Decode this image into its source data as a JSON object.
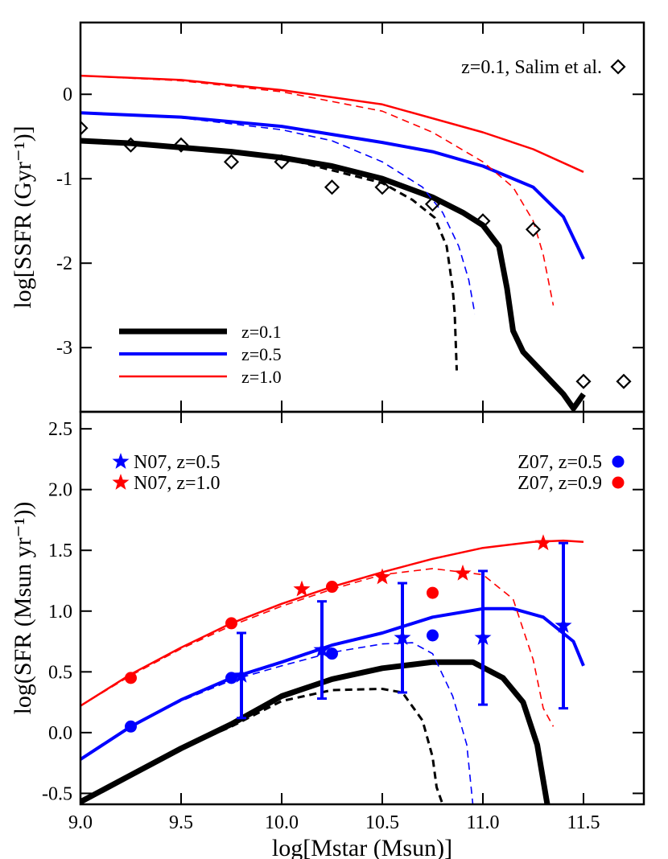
{
  "chart_data": [
    {
      "type": "line",
      "ylabel": "log[SSFR (Gyr⁻¹)]",
      "xlim": [
        9.0,
        11.8
      ],
      "ylim": [
        -3.76,
        0.85
      ],
      "xticks": [
        9,
        9.5,
        10,
        10.5,
        11,
        11.5
      ],
      "yticks": [
        0,
        -1,
        -2,
        -3
      ],
      "legend": "lower left",
      "series": [
        {
          "name": "z=0.1",
          "color": "#000000",
          "linewidth": 7,
          "linestyle": "solid",
          "x": [
            9.0,
            9.25,
            9.5,
            9.75,
            10.0,
            10.25,
            10.5,
            10.75,
            10.9,
            11.0,
            11.08,
            11.12,
            11.15,
            11.2,
            11.3,
            11.4,
            11.45,
            11.5
          ],
          "values": [
            -0.55,
            -0.58,
            -0.63,
            -0.68,
            -0.75,
            -0.85,
            -1.0,
            -1.22,
            -1.4,
            -1.55,
            -1.8,
            -2.3,
            -2.8,
            -3.05,
            -3.3,
            -3.55,
            -3.72,
            -3.55
          ]
        },
        {
          "color": "#000000",
          "linewidth": 3,
          "linestyle": "dashed",
          "x": [
            9.0,
            9.5,
            10.0,
            10.25,
            10.5,
            10.65,
            10.76,
            10.82,
            10.85,
            10.86,
            10.87
          ],
          "values": [
            -0.55,
            -0.63,
            -0.75,
            -0.9,
            -1.05,
            -1.25,
            -1.46,
            -1.8,
            -2.3,
            -2.6,
            -3.27
          ]
        },
        {
          "name": "z=0.5",
          "color": "#0000ff",
          "linewidth": 4,
          "linestyle": "solid",
          "x": [
            9.0,
            9.5,
            10.0,
            10.5,
            10.75,
            11.0,
            11.25,
            11.4,
            11.5
          ],
          "values": [
            -0.22,
            -0.27,
            -0.38,
            -0.57,
            -0.68,
            -0.85,
            -1.1,
            -1.45,
            -1.95
          ]
        },
        {
          "color": "#0000ff",
          "linewidth": 1.6,
          "linestyle": "dashed",
          "x": [
            9.0,
            9.5,
            10.0,
            10.25,
            10.5,
            10.7,
            10.8,
            10.88,
            10.93,
            10.96
          ],
          "values": [
            -0.22,
            -0.28,
            -0.42,
            -0.55,
            -0.8,
            -1.1,
            -1.4,
            -1.8,
            -2.2,
            -2.6
          ]
        },
        {
          "name": "z=1.0",
          "color": "#ff0000",
          "linewidth": 2.5,
          "linestyle": "solid",
          "x": [
            9.0,
            9.5,
            10.0,
            10.5,
            11.0,
            11.25,
            11.5
          ],
          "values": [
            0.22,
            0.17,
            0.05,
            -0.12,
            -0.45,
            -0.65,
            -0.92
          ]
        },
        {
          "color": "#ff0000",
          "linewidth": 1.6,
          "linestyle": "dashed",
          "x": [
            9.0,
            9.5,
            10.0,
            10.5,
            10.75,
            11.0,
            11.15,
            11.25,
            11.3,
            11.35
          ],
          "values": [
            0.22,
            0.16,
            0.03,
            -0.2,
            -0.45,
            -0.8,
            -1.1,
            -1.5,
            -1.9,
            -2.5
          ]
        },
        {
          "name": "z=0.1, Salim et al.",
          "color": "#000000",
          "marker": "diamond",
          "x": [
            9.0,
            9.25,
            9.5,
            9.75,
            10.0,
            10.25,
            10.5,
            10.75,
            11.0,
            11.25,
            11.5,
            11.7
          ],
          "values": [
            -0.4,
            -0.6,
            -0.6,
            -0.8,
            -0.8,
            -1.1,
            -1.1,
            -1.3,
            -1.5,
            -1.6,
            -3.4,
            -3.4
          ]
        }
      ]
    },
    {
      "type": "line",
      "xlabel": "log[Mstar (Msun)]",
      "ylabel": "log(SFR (Msun yr⁻¹))",
      "xlim": [
        9.0,
        11.8
      ],
      "ylim": [
        -0.59,
        2.64
      ],
      "xticks": [
        {
          "value": 9,
          "label": "9.0"
        },
        9.5,
        {
          "value": 10,
          "label": "10.0"
        },
        10.5,
        {
          "value": 11,
          "label": "11.0"
        },
        11.5
      ],
      "yticks": [
        2.5,
        {
          "value": 2,
          "label": "2.0"
        },
        1.5,
        {
          "value": 1,
          "label": "1.0"
        },
        0.5,
        {
          "value": 0,
          "label": "0.0"
        },
        -0.5
      ],
      "series": [
        {
          "color": "#000000",
          "linewidth": 7,
          "linestyle": "solid",
          "x": [
            9.0,
            9.25,
            9.5,
            9.75,
            10.0,
            10.25,
            10.5,
            10.75,
            10.95,
            11.1,
            11.2,
            11.27,
            11.32
          ],
          "values": [
            -0.57,
            -0.35,
            -0.13,
            0.07,
            0.3,
            0.44,
            0.53,
            0.58,
            0.58,
            0.45,
            0.25,
            -0.1,
            -0.59
          ]
        },
        {
          "color": "#000000",
          "linewidth": 3,
          "linestyle": "dashed",
          "x": [
            9.0,
            9.25,
            9.5,
            9.75,
            10.0,
            10.25,
            10.5,
            10.6,
            10.7,
            10.75,
            10.77,
            10.8
          ],
          "values": [
            -0.57,
            -0.35,
            -0.13,
            0.05,
            0.26,
            0.35,
            0.36,
            0.33,
            0.1,
            -0.2,
            -0.45,
            -0.59
          ]
        },
        {
          "color": "#0000ff",
          "linewidth": 4,
          "linestyle": "solid",
          "x": [
            9.0,
            9.25,
            9.5,
            9.75,
            10.0,
            10.25,
            10.5,
            10.75,
            11.0,
            11.15,
            11.3,
            11.45,
            11.5
          ],
          "values": [
            -0.22,
            0.05,
            0.27,
            0.45,
            0.58,
            0.72,
            0.82,
            0.95,
            1.02,
            1.02,
            0.95,
            0.75,
            0.55
          ]
        },
        {
          "color": "#0000ff",
          "linewidth": 1.6,
          "linestyle": "dashed",
          "x": [
            9.0,
            9.25,
            9.5,
            9.75,
            10.0,
            10.25,
            10.5,
            10.65,
            10.75,
            10.85,
            10.92,
            10.95
          ],
          "values": [
            -0.22,
            0.05,
            0.26,
            0.43,
            0.55,
            0.66,
            0.73,
            0.74,
            0.65,
            0.3,
            -0.1,
            -0.59
          ]
        },
        {
          "color": "#ff0000",
          "linewidth": 2.5,
          "linestyle": "solid",
          "x": [
            9.0,
            9.25,
            9.5,
            9.75,
            10.0,
            10.25,
            10.5,
            10.75,
            11.0,
            11.25,
            11.4,
            11.5
          ],
          "values": [
            0.22,
            0.48,
            0.7,
            0.9,
            1.06,
            1.2,
            1.32,
            1.43,
            1.52,
            1.57,
            1.58,
            1.57
          ]
        },
        {
          "color": "#ff0000",
          "linewidth": 1.6,
          "linestyle": "dashed",
          "x": [
            9.0,
            9.25,
            9.5,
            9.75,
            10.0,
            10.25,
            10.5,
            10.75,
            11.0,
            11.15,
            11.25,
            11.3,
            11.35
          ],
          "values": [
            0.22,
            0.47,
            0.69,
            0.88,
            1.04,
            1.18,
            1.3,
            1.35,
            1.3,
            1.1,
            0.6,
            0.2,
            0.05
          ]
        },
        {
          "name": "N07, z=0.5",
          "color": "#0000ff",
          "marker": "star",
          "x": [
            9.8,
            10.2,
            10.6,
            11.0,
            11.4
          ],
          "values": [
            0.47,
            0.68,
            0.78,
            0.78,
            0.88
          ],
          "errors": [
            0.35,
            0.4,
            0.45,
            0.55,
            0.68
          ]
        },
        {
          "name": "N07, z=1.0",
          "color": "#ff0000",
          "marker": "star",
          "x": [
            10.1,
            10.5,
            10.9,
            11.3
          ],
          "values": [
            1.18,
            1.28,
            1.31,
            1.56
          ]
        },
        {
          "name": "Z07, z=0.5",
          "color": "#0000ff",
          "marker": "circle",
          "x": [
            9.25,
            9.75,
            10.25,
            10.75
          ],
          "values": [
            0.05,
            0.45,
            0.65,
            0.8
          ]
        },
        {
          "name": "Z07, z=0.9",
          "color": "#ff0000",
          "marker": "circle",
          "x": [
            9.25,
            9.75,
            10.25,
            10.75
          ],
          "values": [
            0.45,
            0.9,
            1.2,
            1.15
          ]
        }
      ]
    }
  ]
}
